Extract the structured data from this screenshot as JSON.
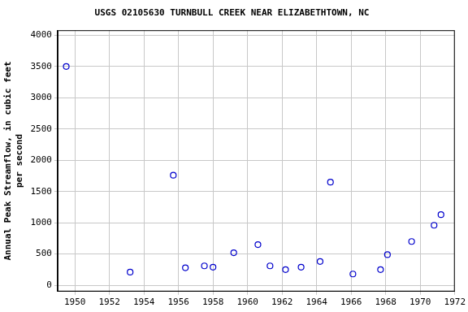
{
  "chart_data": {
    "type": "scatter",
    "title": "USGS 02105630 TURNBULL CREEK NEAR ELIZABETHTOWN, NC",
    "y_label": [
      "Annual Peak Streamflow, in cubic feet",
      "per second"
    ],
    "x": [
      1949.5,
      1953.2,
      1955.7,
      1956.4,
      1957.5,
      1958.0,
      1959.2,
      1960.6,
      1961.3,
      1962.2,
      1963.1,
      1964.2,
      1964.8,
      1966.1,
      1967.7,
      1968.1,
      1969.5,
      1970.8,
      1971.2
    ],
    "values": [
      3500,
      210,
      1760,
      280,
      310,
      290,
      520,
      650,
      310,
      250,
      290,
      380,
      1650,
      180,
      250,
      490,
      700,
      960,
      1130
    ],
    "color": "#0000cc",
    "marker": "circle",
    "xlim": [
      1949,
      1972
    ],
    "xticks": [
      1950,
      1952,
      1954,
      1956,
      1958,
      1960,
      1962,
      1964,
      1966,
      1968,
      1970,
      1972
    ],
    "ylim": [
      -100,
      4080
    ],
    "yticks": [
      0,
      500,
      1000,
      1500,
      2000,
      2500,
      3000,
      3500,
      4000
    ],
    "grid": true
  }
}
